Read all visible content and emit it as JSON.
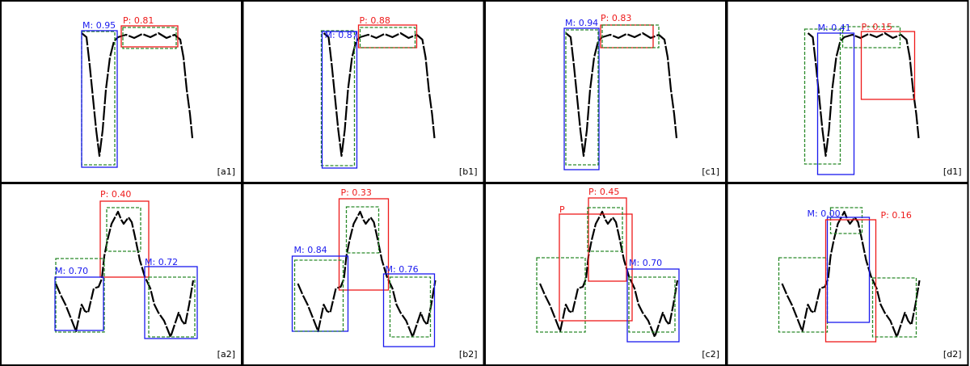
{
  "panels": [
    {
      "tag": "[a1]",
      "labels": [
        "M: 0.95",
        "P: 0.81"
      ]
    },
    {
      "tag": "[b1]",
      "labels": [
        "M: 0.87",
        "P: 0.88"
      ]
    },
    {
      "tag": "[c1]",
      "labels": [
        "M: 0.94",
        "P: 0.83"
      ]
    },
    {
      "tag": "[d1]",
      "labels": [
        "M: 0.41",
        "P: 0.15"
      ]
    },
    {
      "tag": "[a2]",
      "labels": [
        "P: 0.40",
        "M: 0.70",
        "M: 0.72"
      ]
    },
    {
      "tag": "[b2]",
      "labels": [
        "P: 0.33",
        "M: 0.84",
        "M: 0.76"
      ]
    },
    {
      "tag": "[c2]",
      "labels": [
        "P",
        "P: 0.45",
        "M: 0.70"
      ]
    },
    {
      "tag": "[d2]",
      "labels": [
        "M: 0.00",
        "P: 0.16"
      ]
    }
  ]
}
